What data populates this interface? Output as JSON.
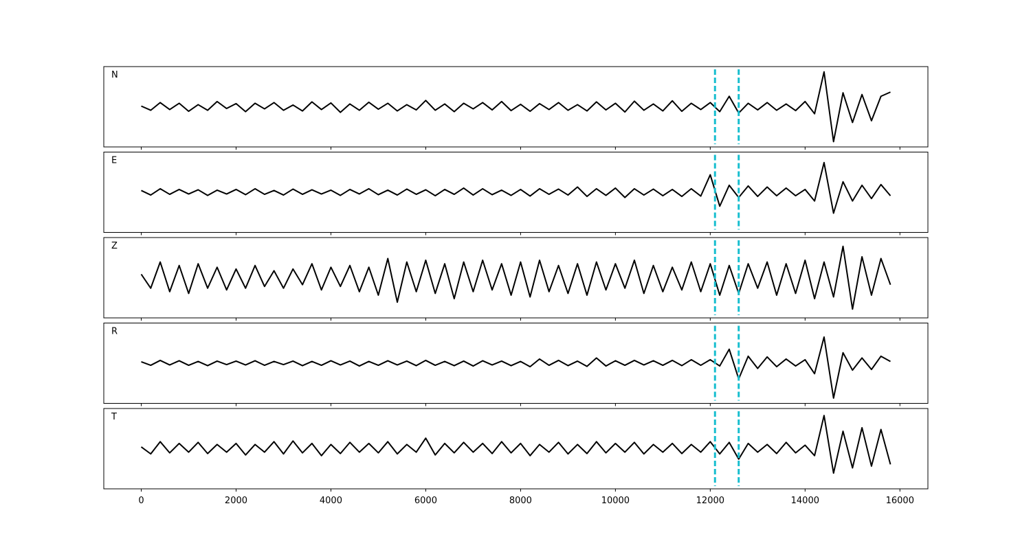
{
  "chart_data": {
    "type": "line",
    "x": [
      0,
      200,
      400,
      600,
      800,
      1000,
      1200,
      1400,
      1600,
      1800,
      2000,
      2200,
      2400,
      2600,
      2800,
      3000,
      3200,
      3400,
      3600,
      3800,
      4000,
      4200,
      4400,
      4600,
      4800,
      5000,
      5200,
      5400,
      5600,
      5800,
      6000,
      6200,
      6400,
      6600,
      6800,
      7000,
      7200,
      7400,
      7600,
      7800,
      8000,
      8200,
      8400,
      8600,
      8800,
      9000,
      9200,
      9400,
      9600,
      9800,
      10000,
      10200,
      10400,
      10600,
      10800,
      11000,
      11200,
      11400,
      11600,
      11800,
      12000,
      12200,
      12400,
      12600,
      12800,
      13000,
      13200,
      13400,
      13600,
      13800,
      14000,
      14200,
      14400,
      14600,
      14800,
      15000,
      15200,
      15400,
      15600,
      15800
    ],
    "series": [
      {
        "name": "N",
        "color": "#000000",
        "values": [
          0.02,
          -0.1,
          0.12,
          -0.08,
          0.1,
          -0.13,
          0.06,
          -0.1,
          0.15,
          -0.05,
          0.09,
          -0.14,
          0.1,
          -0.06,
          0.12,
          -0.1,
          0.05,
          -0.12,
          0.14,
          -0.08,
          0.11,
          -0.16,
          0.08,
          -0.1,
          0.13,
          -0.07,
          0.1,
          -0.12,
          0.06,
          -0.09,
          0.18,
          -0.1,
          0.08,
          -0.14,
          0.1,
          -0.06,
          0.12,
          -0.09,
          0.15,
          -0.11,
          0.07,
          -0.13,
          0.09,
          -0.08,
          0.12,
          -0.1,
          0.06,
          -0.12,
          0.14,
          -0.09,
          0.1,
          -0.15,
          0.16,
          -0.1,
          0.08,
          -0.12,
          0.17,
          -0.13,
          0.1,
          -0.08,
          0.12,
          -0.14,
          0.3,
          -0.18,
          0.1,
          -0.09,
          0.12,
          -0.1,
          0.08,
          -0.11,
          0.15,
          -0.2,
          1.0,
          -1.0,
          0.4,
          -0.45,
          0.35,
          -0.4,
          0.3,
          0.42
        ]
      },
      {
        "name": "E",
        "color": "#000000",
        "values": [
          0.05,
          -0.08,
          0.1,
          -0.06,
          0.08,
          -0.05,
          0.07,
          -0.09,
          0.06,
          -0.05,
          0.08,
          -0.07,
          0.1,
          -0.06,
          0.05,
          -0.08,
          0.09,
          -0.06,
          0.07,
          -0.05,
          0.06,
          -0.09,
          0.08,
          -0.05,
          0.1,
          -0.07,
          0.06,
          -0.08,
          0.09,
          -0.06,
          0.07,
          -0.1,
          0.08,
          -0.06,
          0.12,
          -0.08,
          0.1,
          -0.07,
          0.06,
          -0.09,
          0.08,
          -0.11,
          0.1,
          -0.06,
          0.09,
          -0.08,
          0.15,
          -0.12,
          0.1,
          -0.09,
          0.12,
          -0.15,
          0.1,
          -0.08,
          0.09,
          -0.1,
          0.08,
          -0.12,
          0.1,
          -0.11,
          0.5,
          -0.4,
          0.2,
          -0.15,
          0.18,
          -0.12,
          0.15,
          -0.1,
          0.12,
          -0.1,
          0.08,
          -0.25,
          0.85,
          -0.6,
          0.3,
          -0.25,
          0.2,
          -0.18,
          0.22,
          -0.1
        ]
      },
      {
        "name": "Z",
        "color": "#000000",
        "values": [
          0.1,
          -0.3,
          0.45,
          -0.4,
          0.35,
          -0.45,
          0.4,
          -0.3,
          0.3,
          -0.35,
          0.25,
          -0.3,
          0.35,
          -0.25,
          0.2,
          -0.3,
          0.25,
          -0.2,
          0.4,
          -0.35,
          0.3,
          -0.25,
          0.35,
          -0.4,
          0.3,
          -0.5,
          0.55,
          -0.7,
          0.45,
          -0.4,
          0.5,
          -0.45,
          0.4,
          -0.6,
          0.45,
          -0.4,
          0.5,
          -0.35,
          0.4,
          -0.5,
          0.45,
          -0.55,
          0.5,
          -0.4,
          0.35,
          -0.45,
          0.4,
          -0.5,
          0.45,
          -0.35,
          0.4,
          -0.3,
          0.5,
          -0.45,
          0.35,
          -0.4,
          0.3,
          -0.35,
          0.45,
          -0.4,
          0.4,
          -0.5,
          0.35,
          -0.45,
          0.4,
          -0.3,
          0.45,
          -0.5,
          0.4,
          -0.45,
          0.5,
          -0.6,
          0.45,
          -0.55,
          0.9,
          -0.9,
          0.6,
          -0.5,
          0.55,
          -0.2
        ]
      },
      {
        "name": "R",
        "color": "#000000",
        "values": [
          0.04,
          -0.06,
          0.08,
          -0.05,
          0.07,
          -0.06,
          0.05,
          -0.07,
          0.06,
          -0.04,
          0.06,
          -0.05,
          0.07,
          -0.06,
          0.05,
          -0.04,
          0.06,
          -0.07,
          0.05,
          -0.06,
          0.07,
          -0.05,
          0.06,
          -0.08,
          0.05,
          -0.06,
          0.07,
          -0.05,
          0.06,
          -0.07,
          0.08,
          -0.06,
          0.05,
          -0.07,
          0.06,
          -0.08,
          0.07,
          -0.05,
          0.06,
          -0.07,
          0.05,
          -0.1,
          0.12,
          -0.06,
          0.08,
          -0.07,
          0.06,
          -0.09,
          0.15,
          -0.08,
          0.07,
          -0.06,
          0.08,
          -0.05,
          0.07,
          -0.06,
          0.08,
          -0.07,
          0.1,
          -0.06,
          0.1,
          -0.08,
          0.4,
          -0.45,
          0.2,
          -0.15,
          0.18,
          -0.1,
          0.12,
          -0.08,
          0.1,
          -0.3,
          0.75,
          -1.0,
          0.3,
          -0.2,
          0.15,
          -0.18,
          0.2,
          0.05
        ]
      },
      {
        "name": "T",
        "color": "#000000",
        "values": [
          0.05,
          -0.15,
          0.2,
          -0.12,
          0.15,
          -0.1,
          0.18,
          -0.14,
          0.12,
          -0.1,
          0.15,
          -0.18,
          0.12,
          -0.1,
          0.2,
          -0.15,
          0.22,
          -0.12,
          0.15,
          -0.2,
          0.12,
          -0.14,
          0.18,
          -0.1,
          0.15,
          -0.12,
          0.2,
          -0.15,
          0.12,
          -0.1,
          0.3,
          -0.18,
          0.15,
          -0.12,
          0.18,
          -0.1,
          0.15,
          -0.14,
          0.2,
          -0.12,
          0.15,
          -0.2,
          0.12,
          -0.1,
          0.18,
          -0.15,
          0.12,
          -0.14,
          0.2,
          -0.12,
          0.15,
          -0.1,
          0.18,
          -0.15,
          0.12,
          -0.1,
          0.15,
          -0.14,
          0.12,
          -0.1,
          0.2,
          -0.15,
          0.18,
          -0.3,
          0.15,
          -0.1,
          0.12,
          -0.14,
          0.18,
          -0.12,
          0.1,
          -0.2,
          0.95,
          -0.7,
          0.5,
          -0.55,
          0.6,
          -0.5,
          0.55,
          -0.45
        ]
      }
    ],
    "xlim": [
      -790,
      16590
    ],
    "ylim": [
      -1.15,
      1.15
    ],
    "xticks": [
      0,
      2000,
      4000,
      6000,
      8000,
      10000,
      12000,
      14000,
      16000
    ],
    "vlines": [
      12100,
      12600
    ],
    "vline_color": "#17becf"
  }
}
